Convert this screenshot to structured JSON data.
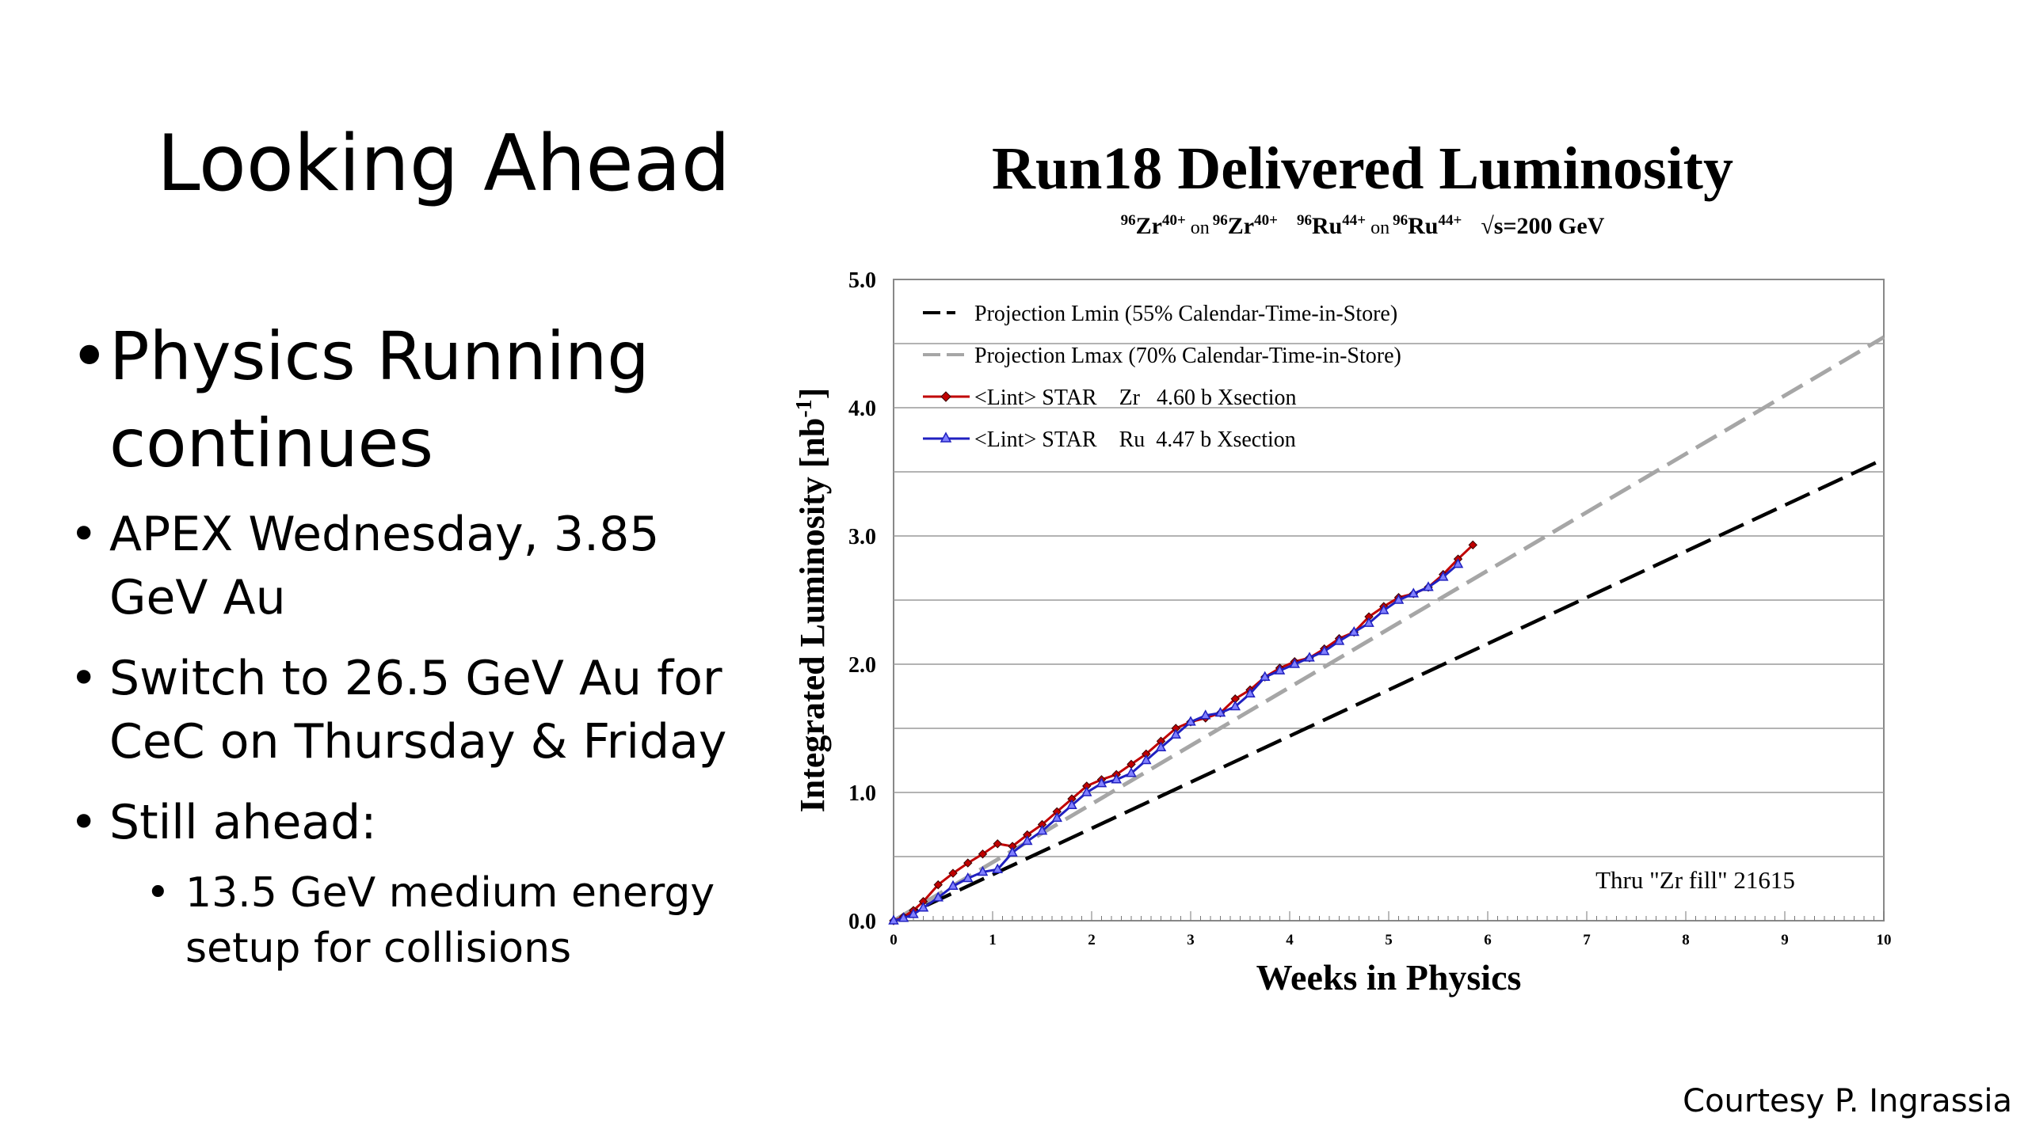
{
  "slide": {
    "title": "Looking Ahead",
    "bullets": [
      "Physics Running continues",
      "APEX Wednesday, 3.85 GeV Au",
      "Switch to 26.5 GeV Au for CeC on Thursday & Friday",
      "Still ahead:"
    ],
    "sub_bullets": [
      "13.5 GeV medium energy setup for collisions"
    ],
    "credit": "Courtesy P. Ingrassia"
  },
  "chart_data": {
    "type": "line",
    "title": "Run18 Delivered Luminosity",
    "subtitle": {
      "m1": "96",
      "e1": "Zr",
      "c1": "40+",
      "on1": "on",
      "m2": "96",
      "e2": "Zr",
      "c2": "40+",
      "m3": "96",
      "e3": "Ru",
      "c3": "44+",
      "on2": "on",
      "m4": "96",
      "e4": "Ru",
      "c4": "44+",
      "energy": "√s=200 GeV"
    },
    "xlabel": "Weeks in Physics",
    "ylabel": "Integrated Luminosity [nb",
    "ylabel_sup": "-1",
    "ylabel_close": "]",
    "xlim": [
      0,
      10
    ],
    "ylim": [
      0,
      5
    ],
    "x_ticks": [
      "0",
      "1",
      "2",
      "3",
      "4",
      "5",
      "6",
      "7",
      "8",
      "9",
      "10"
    ],
    "y_ticks": [
      "0.0",
      "1.0",
      "2.0",
      "3.0",
      "4.0",
      "5.0"
    ],
    "annotation": "Thru \"Zr fill\" 21615",
    "legend_position": "top-left",
    "grid": true,
    "colors": {
      "lmin": "#000000",
      "lmax": "#a6a6a6",
      "zr": "#c00000",
      "ru": "#2020c0"
    },
    "series": [
      {
        "name": "Projection Lmin (55% Calendar-Time-in-Store)",
        "style": "dash",
        "x": [
          0,
          10
        ],
        "y": [
          0,
          3.6
        ]
      },
      {
        "name": "Projection Lmax (70% Calendar-Time-in-Store)",
        "style": "dash",
        "x": [
          0,
          10
        ],
        "y": [
          0,
          4.55
        ]
      },
      {
        "name": "<Lint> STAR    Zr   4.60 b Xsection",
        "style": "diamond",
        "x": [
          0,
          0.1,
          0.2,
          0.3,
          0.45,
          0.6,
          0.75,
          0.9,
          1.05,
          1.2,
          1.35,
          1.5,
          1.65,
          1.8,
          1.95,
          2.1,
          2.25,
          2.4,
          2.55,
          2.7,
          2.85,
          3.0,
          3.15,
          3.3,
          3.45,
          3.6,
          3.75,
          3.9,
          4.05,
          4.2,
          4.35,
          4.5,
          4.65,
          4.8,
          4.95,
          5.1,
          5.25,
          5.4,
          5.55,
          5.7,
          5.85
        ],
        "y": [
          0,
          0.03,
          0.08,
          0.15,
          0.28,
          0.37,
          0.45,
          0.52,
          0.6,
          0.58,
          0.67,
          0.75,
          0.85,
          0.95,
          1.05,
          1.1,
          1.14,
          1.22,
          1.3,
          1.4,
          1.5,
          1.55,
          1.58,
          1.62,
          1.73,
          1.8,
          1.9,
          1.97,
          2.02,
          2.05,
          2.12,
          2.2,
          2.25,
          2.37,
          2.45,
          2.52,
          2.55,
          2.6,
          2.7,
          2.82,
          2.93
        ]
      },
      {
        "name": "<Lint> STAR    Ru  4.47 b Xsection",
        "style": "triangle",
        "x": [
          0,
          0.1,
          0.2,
          0.3,
          0.45,
          0.6,
          0.75,
          0.9,
          1.05,
          1.2,
          1.35,
          1.5,
          1.65,
          1.8,
          1.95,
          2.1,
          2.25,
          2.4,
          2.55,
          2.7,
          2.85,
          3.0,
          3.15,
          3.3,
          3.45,
          3.6,
          3.75,
          3.9,
          4.05,
          4.2,
          4.35,
          4.5,
          4.65,
          4.8,
          4.95,
          5.1,
          5.25,
          5.4,
          5.55,
          5.7
        ],
        "y": [
          0,
          0.02,
          0.05,
          0.1,
          0.18,
          0.27,
          0.33,
          0.38,
          0.4,
          0.53,
          0.62,
          0.7,
          0.8,
          0.9,
          1.0,
          1.07,
          1.1,
          1.15,
          1.25,
          1.35,
          1.45,
          1.55,
          1.6,
          1.62,
          1.67,
          1.77,
          1.9,
          1.95,
          2.0,
          2.05,
          2.1,
          2.18,
          2.25,
          2.32,
          2.42,
          2.5,
          2.55,
          2.6,
          2.68,
          2.78
        ]
      }
    ]
  }
}
